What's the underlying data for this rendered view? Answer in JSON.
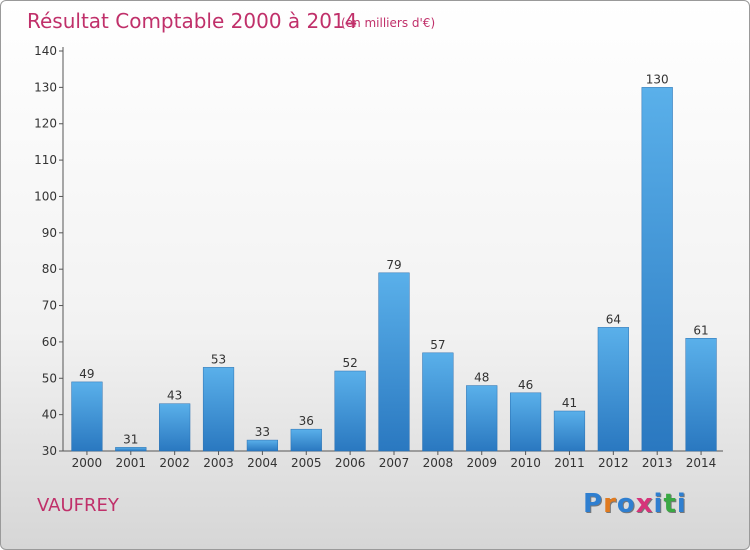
{
  "chart_data": {
    "type": "bar",
    "title": "Résultat Comptable 2000 à 2014",
    "subtitle": "(en milliers d'€)",
    "categories": [
      "2000",
      "2001",
      "2002",
      "2003",
      "2004",
      "2005",
      "2006",
      "2007",
      "2008",
      "2009",
      "2010",
      "2011",
      "2012",
      "2013",
      "2014"
    ],
    "values": [
      49,
      31,
      43,
      53,
      33,
      36,
      52,
      79,
      57,
      48,
      46,
      41,
      64,
      130,
      61
    ],
    "ylim": [
      30,
      140
    ],
    "yticks": [
      30,
      40,
      50,
      60,
      70,
      80,
      90,
      100,
      110,
      120,
      130,
      140
    ],
    "grid": false,
    "bar_color": "#3a8fd6"
  },
  "place_name": "VAUFREY",
  "logo": {
    "letters": [
      "P",
      "r",
      "o",
      "x",
      "i",
      "t",
      "i"
    ],
    "colors": [
      "#2f7fd0",
      "#e07a1f",
      "#2f7fd0",
      "#d6347a",
      "#2f7fd0",
      "#3aa843",
      "#2f7fd0"
    ]
  }
}
